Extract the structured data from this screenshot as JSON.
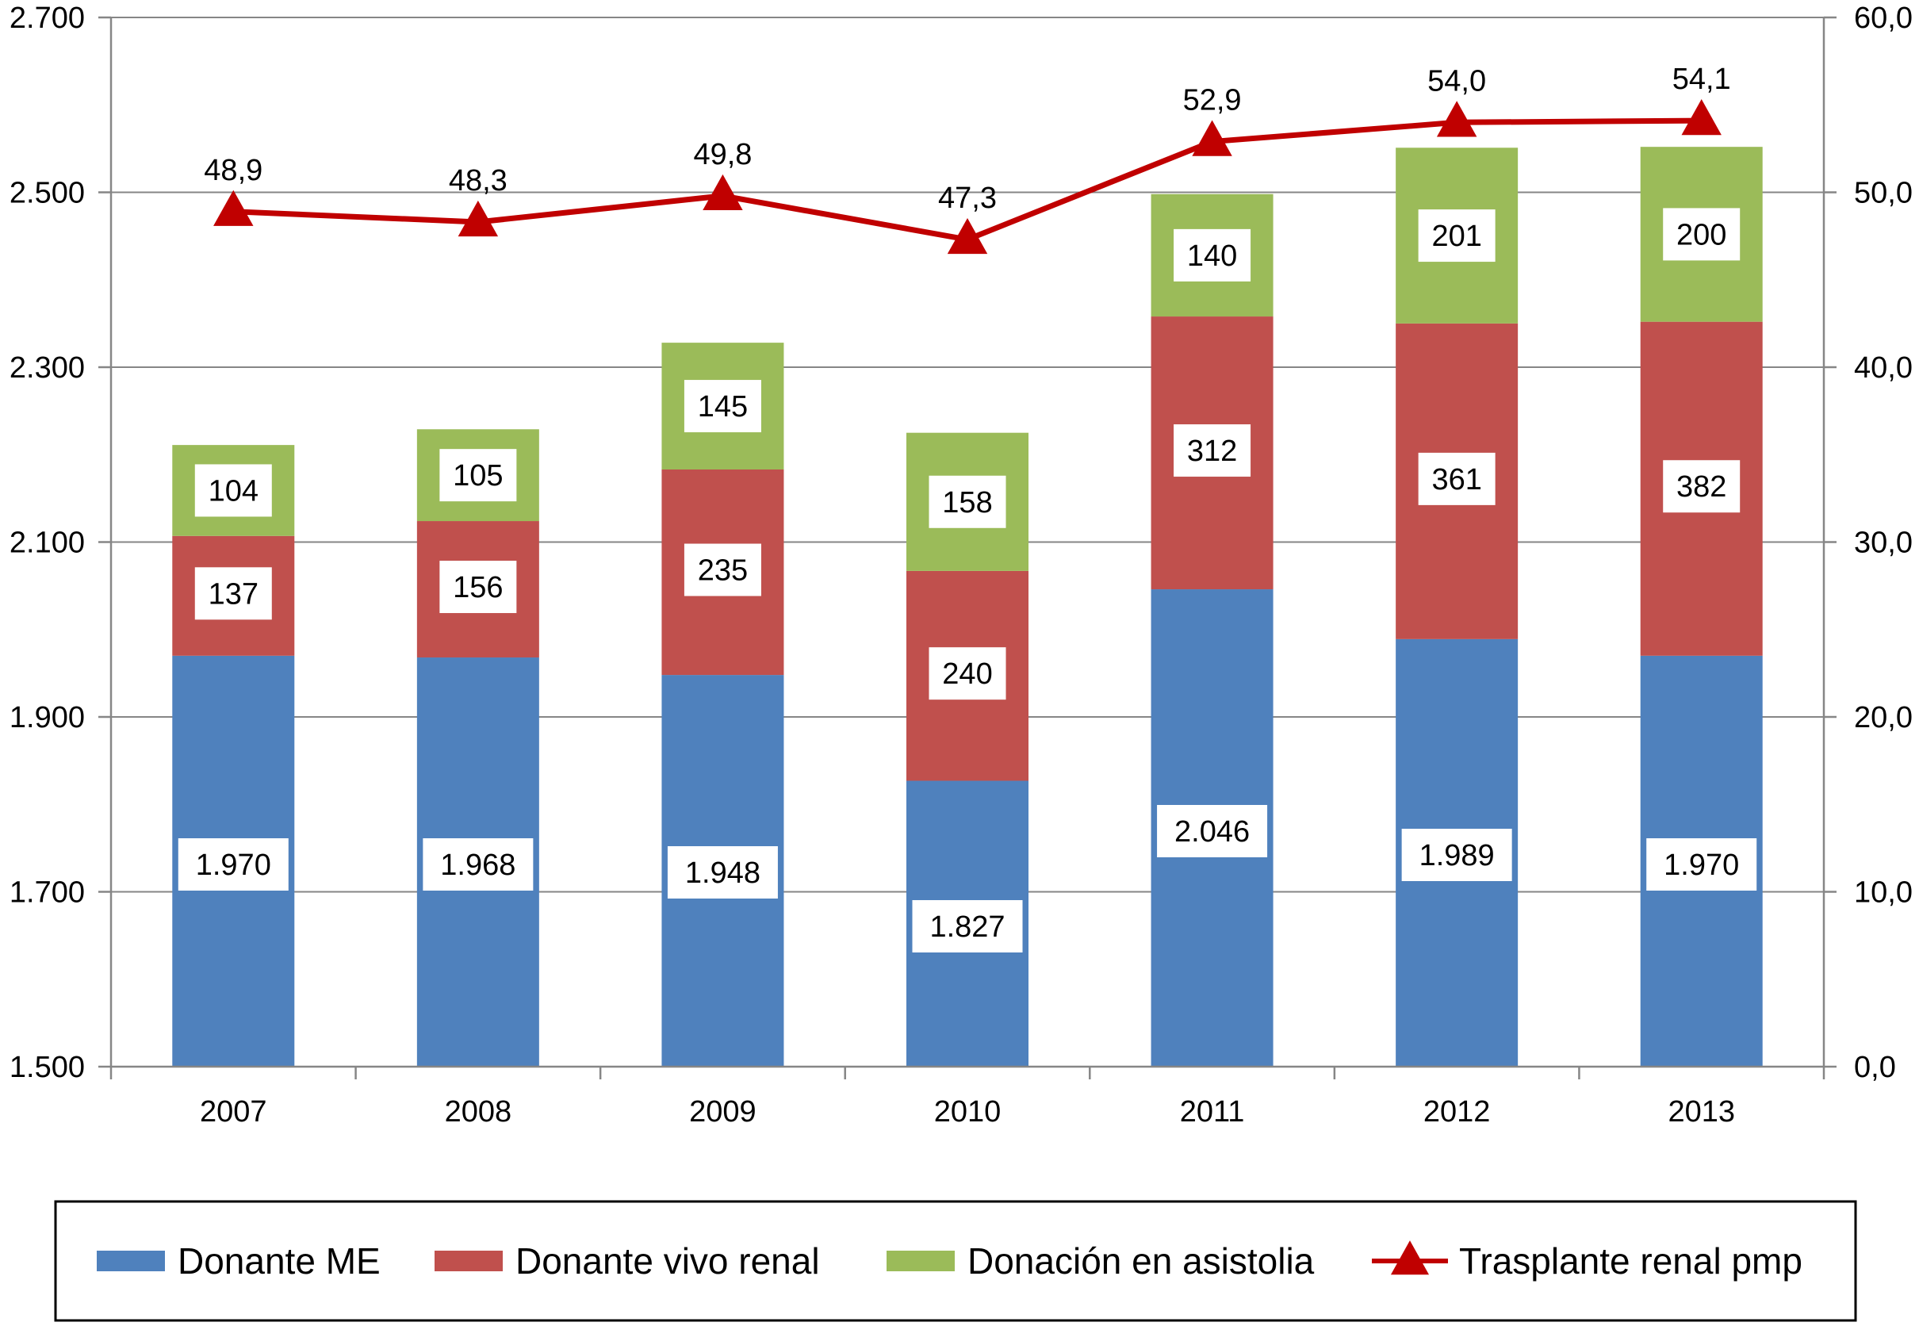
{
  "chart_data": {
    "type": "bar",
    "stacked": true,
    "categories": [
      "2007",
      "2008",
      "2009",
      "2010",
      "2011",
      "2012",
      "2013"
    ],
    "series": [
      {
        "name": "Donante ME",
        "color": "#4F81BD",
        "values": [
          1970,
          1968,
          1948,
          1827,
          2046,
          1989,
          1970
        ],
        "labels": [
          "1.970",
          "1.968",
          "1.948",
          "1.827",
          "2.046",
          "1.989",
          "1.970"
        ]
      },
      {
        "name": "Donante vivo renal",
        "color": "#C0504D",
        "values": [
          137,
          156,
          235,
          240,
          312,
          361,
          382
        ],
        "labels": [
          "137",
          "156",
          "235",
          "240",
          "312",
          "361",
          "382"
        ]
      },
      {
        "name": "Donación en asistolia",
        "color": "#9BBB59",
        "values": [
          104,
          105,
          145,
          158,
          140,
          201,
          200
        ],
        "labels": [
          "104",
          "105",
          "145",
          "158",
          "140",
          "201",
          "200"
        ]
      }
    ],
    "line_series": {
      "name": "Trasplante renal pmp",
      "color": "#C00000",
      "axis": "right",
      "marker": "triangle",
      "values": [
        48.9,
        48.3,
        49.8,
        47.3,
        52.9,
        54.0,
        54.1
      ],
      "labels": [
        "48,9",
        "48,3",
        "49,8",
        "47,3",
        "52,9",
        "54,0",
        "54,1"
      ]
    },
    "left_axis": {
      "ylim": [
        1500,
        2700
      ],
      "ticks": [
        1500,
        1700,
        1900,
        2100,
        2300,
        2500,
        2700
      ],
      "tick_labels": [
        "1.500",
        "1.700",
        "1.900",
        "2.100",
        "2.300",
        "2.500",
        "2.700"
      ]
    },
    "right_axis": {
      "ylim": [
        0,
        60
      ],
      "ticks": [
        0,
        10,
        20,
        30,
        40,
        50,
        60
      ],
      "tick_labels": [
        "0,0",
        "10,0",
        "20,0",
        "30,0",
        "40,0",
        "50,0",
        "60,0"
      ]
    },
    "grid": true,
    "legend": "bottom",
    "title": "",
    "xlabel": "",
    "ylabel": ""
  }
}
